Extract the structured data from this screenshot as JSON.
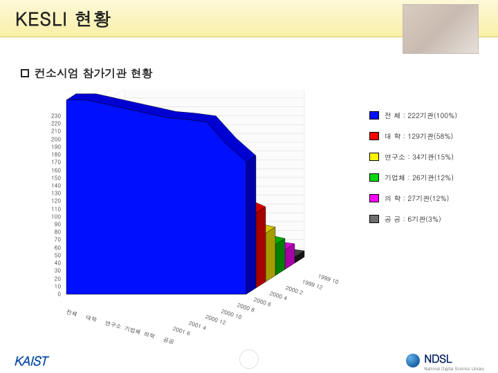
{
  "header": {
    "title": "KESLI 현황"
  },
  "subhead": {
    "label": "컨소시엄 참가기관 현황"
  },
  "chart": {
    "type": "3d-area-stacked",
    "background_color": "#ffffff",
    "wall_perspective_color": "#f2f2f2",
    "grid_color": "#d8d8d8",
    "y_axis": {
      "min": 0,
      "max": 230,
      "tick_step": 10,
      "fontsize": 8
    },
    "x_labels": [
      "1999 10",
      "1999 12",
      "2000 2",
      "2000 4",
      "2000 6",
      "2000 8",
      "2000 10",
      "2000 12",
      "2001 4",
      "2001 6"
    ],
    "x_fontsize": 8,
    "category_labels": [
      "전체",
      "대학",
      "연구소",
      "기업체",
      "의학",
      "공공"
    ],
    "series": [
      {
        "name": "전체",
        "color": "#0010ff",
        "values": [
          220,
          220,
          215,
          210,
          205,
          200,
          198,
          195,
          170,
          150
        ]
      },
      {
        "name": "대학",
        "color": "#ff0000",
        "values": [
          125,
          125,
          120,
          120,
          118,
          115,
          110,
          108,
          95,
          85
        ]
      },
      {
        "name": "연구소",
        "color": "#fff400",
        "values": [
          130,
          128,
          110,
          95,
          80,
          75,
          70,
          65,
          60,
          55
        ]
      },
      {
        "name": "기업체",
        "color": "#00d80e",
        "values": [
          90,
          88,
          82,
          75,
          68,
          60,
          52,
          45,
          40,
          35
        ]
      },
      {
        "name": "의학",
        "color": "#ff00ff",
        "values": [
          55,
          52,
          48,
          42,
          37,
          33,
          30,
          28,
          25,
          22
        ]
      },
      {
        "name": "공공",
        "color": "#6e6e6e",
        "values": [
          30,
          28,
          25,
          22,
          19,
          16,
          14,
          12,
          10,
          7
        ]
      }
    ]
  },
  "legend": {
    "items": [
      {
        "swatch": "#0010ff",
        "label": "전  체 : 222기관(100%)"
      },
      {
        "swatch": "#ff0000",
        "label": "대  학 : 129기관(58%)"
      },
      {
        "swatch": "#fff400",
        "label": "연구소 :  34기관(15%)"
      },
      {
        "swatch": "#00d80e",
        "label": "기업체 :  26기관(12%)"
      },
      {
        "swatch": "#ff00ff",
        "label": "의  학 :  27기관(12%)"
      },
      {
        "swatch": "#6e6e6e",
        "label": "공  공 :   6기관(3%)"
      }
    ]
  },
  "footer": {
    "kaist": "KAIST",
    "ndsl": "NDSL",
    "ndsl_sub": "National Digital Science Library"
  }
}
